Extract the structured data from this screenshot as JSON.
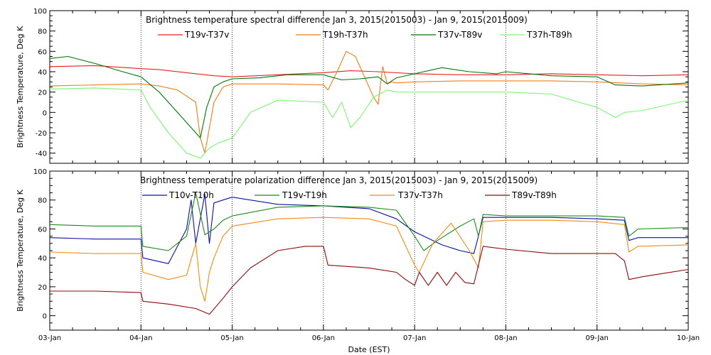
{
  "chart_data": [
    {
      "type": "line",
      "title": "Brightness temperature spectral difference    Jan  3, 2015(2015003) - Jan  9, 2015(2015009)",
      "ylabel": "Brightness Temperature, Deg K",
      "xlabel": "",
      "ylim": [
        -50,
        100
      ],
      "yticks": [
        -40,
        -20,
        0,
        20,
        40,
        60,
        80,
        100
      ],
      "xlim": [
        0,
        7
      ],
      "xticks": [
        0,
        1,
        2,
        3,
        4,
        5,
        6,
        7
      ],
      "grid": "vertical-dotted",
      "series": [
        {
          "name": "T19v-T37v",
          "color": "#e8201c",
          "x": [
            0,
            0.5,
            1.0,
            1.2,
            1.5,
            1.8,
            2.0,
            2.5,
            3.0,
            3.3,
            3.6,
            4.0,
            4.5,
            5.0,
            5.5,
            6.0,
            6.5,
            7.0
          ],
          "y": [
            45,
            46,
            43,
            42,
            39,
            36,
            35,
            37,
            39,
            41,
            40,
            38,
            37,
            37,
            38,
            37,
            36,
            37
          ]
        },
        {
          "name": "T19h-T37h",
          "color": "#f07d1a",
          "x": [
            0,
            0.5,
            1.0,
            1.2,
            1.4,
            1.6,
            1.65,
            1.7,
            1.8,
            1.9,
            2.0,
            2.5,
            3.0,
            3.05,
            3.15,
            3.25,
            3.35,
            3.45,
            3.55,
            3.6,
            3.65,
            3.7,
            3.75,
            3.8,
            4.0,
            4.5,
            5.0,
            5.5,
            6.0,
            6.5,
            7.0
          ],
          "y": [
            26,
            27,
            28,
            26,
            22,
            10,
            -25,
            -40,
            10,
            25,
            28,
            28,
            27,
            22,
            40,
            60,
            55,
            35,
            15,
            8,
            45,
            28,
            30,
            29,
            30,
            31,
            31,
            31,
            30,
            28,
            27
          ]
        },
        {
          "name": "T37v-T89v",
          "color": "#00780a",
          "x": [
            0,
            0.2,
            0.5,
            0.8,
            1.0,
            1.2,
            1.4,
            1.55,
            1.65,
            1.72,
            1.8,
            1.9,
            2.0,
            2.3,
            2.6,
            3.0,
            3.2,
            3.4,
            3.6,
            3.7,
            3.8,
            4.0,
            4.3,
            4.6,
            4.9,
            5.0,
            5.5,
            6.0,
            6.2,
            6.5,
            7.0
          ],
          "y": [
            53,
            55,
            48,
            40,
            35,
            20,
            0,
            -15,
            -25,
            5,
            25,
            30,
            33,
            34,
            37,
            37,
            32,
            33,
            35,
            28,
            34,
            38,
            44,
            40,
            38,
            40,
            36,
            35,
            27,
            26,
            29
          ]
        },
        {
          "name": "T37h-T89h",
          "color": "#7cf574",
          "x": [
            0,
            0.5,
            1.0,
            1.1,
            1.3,
            1.5,
            1.65,
            1.75,
            1.85,
            2.0,
            2.2,
            2.5,
            3.0,
            3.1,
            3.2,
            3.3,
            3.4,
            3.55,
            3.7,
            3.8,
            4.0,
            4.5,
            5.0,
            5.5,
            5.8,
            6.0,
            6.2,
            6.3,
            6.5,
            7.0
          ],
          "y": [
            23,
            24,
            22,
            5,
            -20,
            -40,
            -45,
            -35,
            -30,
            -25,
            0,
            12,
            10,
            -5,
            10,
            -15,
            -5,
            15,
            22,
            20,
            20,
            20,
            20,
            18,
            10,
            5,
            -5,
            0,
            2,
            12
          ]
        }
      ]
    },
    {
      "type": "line",
      "title": "Brightness temperature polarization difference    Jan  3, 2015(2015003) - Jan  9, 2015(2015009)",
      "ylabel": "Brightness Temperature, Deg K",
      "xlabel": "Date (EST)",
      "ylim": [
        -10,
        100
      ],
      "yticks": [
        0,
        20,
        40,
        60,
        80,
        100
      ],
      "xlim": [
        0,
        7
      ],
      "xticks": [
        0,
        1,
        2,
        3,
        4,
        5,
        6,
        7
      ],
      "xtick_labels": [
        "03-Jan",
        "04-Jan",
        "05-Jan",
        "06-Jan",
        "07-Jan",
        "08-Jan",
        "09-Jan",
        "10-Jan"
      ],
      "grid": "vertical-dotted",
      "series": [
        {
          "name": "T10v-T10h",
          "color": "#0a10a0",
          "x": [
            0,
            0.5,
            1.0,
            1.02,
            1.3,
            1.5,
            1.55,
            1.6,
            1.7,
            1.75,
            1.8,
            1.9,
            2.0,
            2.5,
            3.0,
            3.5,
            3.8,
            4.0,
            4.3,
            4.5,
            4.65,
            4.7,
            4.75,
            5.0,
            5.5,
            6.0,
            6.3,
            6.35,
            6.45,
            7.0
          ],
          "y": [
            54,
            53,
            53,
            40,
            36,
            60,
            80,
            50,
            84,
            50,
            78,
            80,
            82,
            77,
            76,
            74,
            67,
            58,
            49,
            45,
            43,
            55,
            68,
            68,
            68,
            67,
            66,
            52,
            54,
            54
          ]
        },
        {
          "name": "T19v-T19h",
          "color": "#1a8c1a",
          "x": [
            0,
            0.5,
            1.0,
            1.02,
            1.3,
            1.5,
            1.6,
            1.7,
            1.8,
            1.9,
            2.0,
            2.5,
            3.0,
            3.5,
            3.8,
            4.0,
            4.1,
            4.25,
            4.5,
            4.65,
            4.7,
            4.75,
            5.0,
            5.5,
            6.0,
            6.3,
            6.35,
            6.45,
            7.0
          ],
          "y": [
            63,
            62,
            62,
            48,
            45,
            55,
            85,
            56,
            60,
            66,
            69,
            75,
            76,
            75,
            73,
            55,
            45,
            52,
            62,
            67,
            55,
            70,
            69,
            69,
            69,
            68,
            55,
            60,
            61
          ]
        },
        {
          "name": "T37v-T37h",
          "color": "#f08c14",
          "x": [
            0,
            0.5,
            1.0,
            1.02,
            1.3,
            1.5,
            1.6,
            1.65,
            1.7,
            1.75,
            1.8,
            1.9,
            2.0,
            2.5,
            3.0,
            3.5,
            3.8,
            4.0,
            4.05,
            4.2,
            4.4,
            4.6,
            4.7,
            4.75,
            5.0,
            5.5,
            6.0,
            6.3,
            6.35,
            6.45,
            7.0
          ],
          "y": [
            44,
            43,
            43,
            30,
            25,
            28,
            50,
            20,
            10,
            30,
            40,
            55,
            62,
            67,
            68,
            67,
            62,
            35,
            30,
            50,
            64,
            45,
            33,
            65,
            66,
            66,
            65,
            63,
            44,
            48,
            49
          ]
        },
        {
          "name": "T89v-T89h",
          "color": "#8c0a0a",
          "x": [
            0,
            0.5,
            1.0,
            1.02,
            1.3,
            1.6,
            1.75,
            1.9,
            2.0,
            2.2,
            2.5,
            2.8,
            3.0,
            3.05,
            3.5,
            3.8,
            3.9,
            4.0,
            4.05,
            4.15,
            4.25,
            4.35,
            4.45,
            4.55,
            4.65,
            4.7,
            4.75,
            5.0,
            5.5,
            6.0,
            6.2,
            6.3,
            6.35,
            6.5,
            7.0
          ],
          "y": [
            17,
            17,
            16,
            10,
            8,
            5,
            1,
            12,
            20,
            33,
            45,
            48,
            48,
            35,
            33,
            30,
            25,
            21,
            30,
            21,
            30,
            21,
            30,
            23,
            22,
            35,
            48,
            46,
            43,
            43,
            43,
            38,
            25,
            27,
            32
          ]
        }
      ]
    }
  ]
}
